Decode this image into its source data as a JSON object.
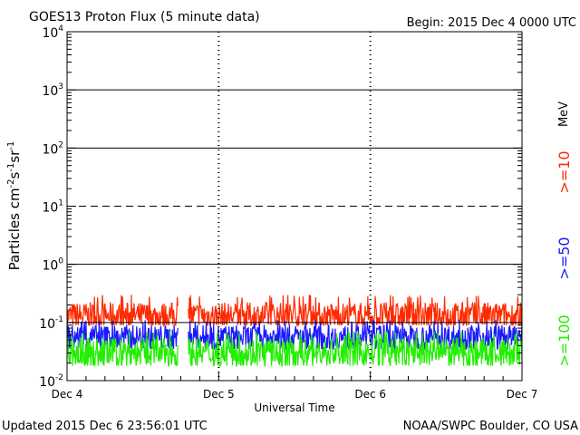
{
  "chart_data": {
    "type": "line",
    "title": "GOES13 Proton Flux (5 minute data)",
    "begin": "Begin: 2015 Dec 4 0000 UTC",
    "xlabel": "Universal Time",
    "ylabel_main": "Particles cm",
    "ylabel_sup1": "-2",
    "ylabel_s": "s",
    "ylabel_sup2": "-1",
    "ylabel_sr": "sr",
    "ylabel_sup3": "-1",
    "y_scale": "log",
    "ylim": [
      0.01,
      10000
    ],
    "y_ticks": [
      {
        "value": 10000,
        "base": "10",
        "exp": "4"
      },
      {
        "value": 1000,
        "base": "10",
        "exp": "3"
      },
      {
        "value": 100,
        "base": "10",
        "exp": "2"
      },
      {
        "value": 10,
        "base": "10",
        "exp": "1"
      },
      {
        "value": 1,
        "base": "10",
        "exp": "0"
      },
      {
        "value": 0.1,
        "base": "10",
        "exp": "-1"
      },
      {
        "value": 0.01,
        "base": "10",
        "exp": "-2"
      }
    ],
    "x_ticks": [
      "Dec 4",
      "Dec 5",
      "Dec 6",
      "Dec 7"
    ],
    "xlim_days": [
      0,
      3
    ],
    "threshold_lines": [
      {
        "value": 1000,
        "style": "solid"
      },
      {
        "value": 100,
        "style": "solid"
      },
      {
        "value": 10,
        "style": "dashed"
      },
      {
        "value": 1,
        "style": "solid"
      },
      {
        "value": 0.1,
        "style": "solid"
      }
    ],
    "data_gap_days": [
      0.73,
      0.8
    ],
    "series": [
      {
        "name": ">=10",
        "color": "#ff2a00",
        "typical": 0.13,
        "min": 0.09,
        "max": 0.3
      },
      {
        "name": ">=50",
        "color": "#1a1aff",
        "typical": 0.055,
        "min": 0.035,
        "max": 0.11
      },
      {
        "name": ">=100",
        "color": "#22ee00",
        "typical": 0.03,
        "min": 0.018,
        "max": 0.07
      }
    ],
    "legend_unit": "MeV"
  },
  "footer": {
    "updated": "Updated 2015 Dec  6 23:56:01 UTC",
    "credit": "NOAA/SWPC Boulder, CO USA"
  }
}
